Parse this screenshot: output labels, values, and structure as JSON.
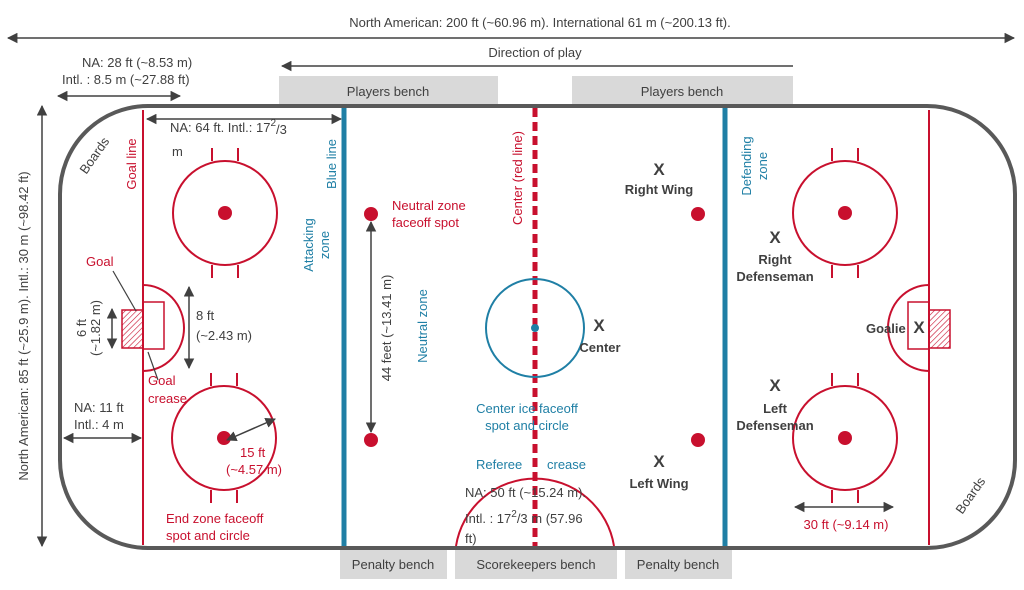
{
  "dims": {
    "total_length": "North American: 200 ft (~60.96 m). International 61 m (~200.13 ft).",
    "direction": "Direction of play",
    "goal_to_end_1": "NA: 28 ft (~8.53 m)",
    "goal_to_end_2": "Intl. : 8.5 m (~27.88 ft)",
    "width": "North American: 85 ft (~25.9 m). Intl.: 30 m (~98.42 ft)",
    "endzone_1": "NA: 64 ft. Intl.: 17",
    "endzone_sup": "2",
    "endzone_sub": "/3",
    "endzone_2": "m",
    "goal_w_1": "6 ft",
    "goal_w_2": "(~1.82 m)",
    "crease_1": "8 ft",
    "crease_2": "(~2.43 m)",
    "boards_dist_1": "NA: 11 ft",
    "boards_dist_2": "Intl.: 4 m",
    "neutral_44": "44 feet (~13.41 m)",
    "radius_1": "15 ft",
    "radius_2": "(~4.57 m)",
    "ref_1": "NA: 50 ft (~15.24 m).",
    "ref_2a": "Intl. : 17",
    "ref_2sup": "2",
    "ref_2b": "/3 m (57.96",
    "ref_3": "ft)",
    "faceoff_30": "30 ft (~9.14 m)"
  },
  "labels": {
    "boards_left": "Boards",
    "boards_right": "Boards",
    "goal_line": "Goal line",
    "blue_line": "Blue line",
    "center_line": "Center (red line)",
    "attacking_zone_1": "Attacking",
    "attacking_zone_2": "zone",
    "neutral_zone": "Neutral zone",
    "defending_zone_1": "Defending",
    "defending_zone_2": "zone",
    "goal": "Goal",
    "goal_crease_1": "Goal",
    "goal_crease_2": "crease",
    "neutral_spot_1": "Neutral zone",
    "neutral_spot_2": "faceoff spot",
    "center_ice_1": "Center ice faceoff",
    "center_ice_2": "spot and circle",
    "referee": "Referee",
    "crease": "crease",
    "endzone_spot_1": "End zone faceoff",
    "endzone_spot_2": "spot and circle"
  },
  "players": {
    "mark": "X",
    "right_wing": "Right Wing",
    "center": "Center",
    "left_wing": "Left Wing",
    "right_def_1": "Right",
    "right_def_2": "Defenseman",
    "left_def_1": "Left",
    "left_def_2": "Defenseman",
    "goalie": "Goalie"
  },
  "benches": {
    "players_left": "Players bench",
    "players_right": "Players bench",
    "penalty_left": "Penalty bench",
    "scorekeepers": "Scorekeepers bench",
    "penalty_right": "Penalty bench"
  },
  "colors": {
    "red": "#c8102e",
    "blue": "#1f7fa5",
    "board": "#595959",
    "bench": "#d9d9d9"
  }
}
